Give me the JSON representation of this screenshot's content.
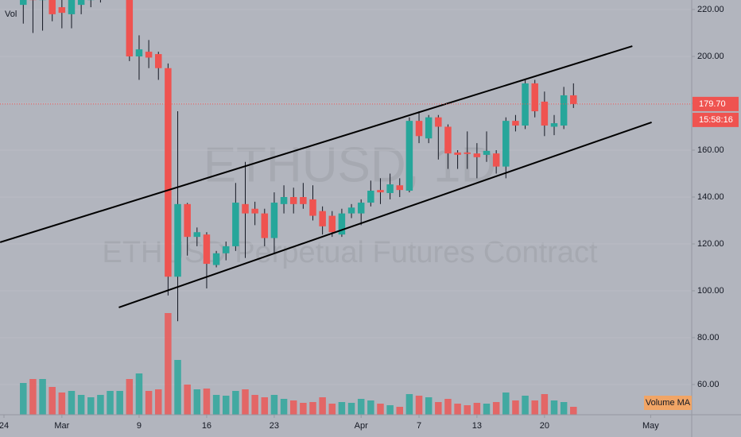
{
  "chart_data": {
    "type": "candlestick",
    "watermark": "ETHUSD, 1D",
    "watermark_subtitle": "ETHUSD Perpetual Futures Contract",
    "volume_label": "Vol",
    "volume_ma_label": "Volume MA",
    "countdown": "15:58:16",
    "last_price": {
      "value": 179.7,
      "label": "179.70"
    },
    "up_color": "#26a69a",
    "down_color": "#ef5350",
    "x": [
      2,
      3,
      4,
      5,
      6,
      7,
      8,
      9,
      10,
      11,
      12,
      13,
      14,
      15,
      16,
      17,
      18,
      19,
      20,
      21,
      22,
      23,
      24,
      25,
      26,
      27,
      28,
      29,
      30,
      31,
      32,
      33,
      34,
      35,
      36,
      37,
      38,
      39,
      40,
      41,
      42,
      43,
      44,
      45,
      46,
      47,
      48,
      49,
      50,
      51,
      52,
      53,
      54,
      55,
      56,
      57,
      58,
      59
    ],
    "open": [
      222,
      228,
      224,
      226,
      221,
      218,
      222,
      224,
      226,
      232,
      236,
      240,
      200,
      202,
      201,
      195,
      106,
      137,
      123,
      124,
      111,
      116,
      119,
      137,
      135,
      133,
      122.5,
      137,
      140,
      140,
      139,
      134,
      132,
      124,
      133,
      133,
      137.6,
      143,
      141.7,
      145,
      142.7,
      172.5,
      165,
      174,
      170,
      159,
      159,
      158.6,
      158,
      158.6,
      153,
      172.5,
      170.5,
      188.5,
      180.7,
      170,
      170.5,
      183.4
    ],
    "high": [
      230,
      230,
      229,
      228,
      225,
      228,
      228,
      229,
      232,
      238,
      242,
      242,
      209,
      207,
      202,
      197,
      176.6,
      137.5,
      127,
      125,
      117,
      121,
      146,
      155,
      138,
      135,
      142,
      145,
      144,
      146,
      145,
      136,
      134,
      135,
      137,
      139,
      147,
      148,
      150,
      148,
      174,
      176.6,
      175,
      175,
      171,
      160,
      168,
      163,
      168,
      160,
      174,
      175,
      190,
      190,
      185,
      175,
      187,
      188.5
    ],
    "low": [
      214,
      210,
      211,
      215,
      212,
      212,
      218,
      221,
      223,
      226,
      230,
      198,
      190,
      195,
      190,
      98,
      87,
      115,
      119,
      101,
      110,
      113,
      117,
      114,
      128,
      119,
      116,
      133,
      133,
      135,
      130,
      124,
      123,
      123,
      131,
      128,
      136,
      137,
      139,
      140,
      142,
      163,
      163,
      156,
      152,
      152,
      152,
      148,
      155,
      150,
      148,
      168,
      169,
      174,
      166,
      166.4,
      169,
      178
    ],
    "close": [
      226,
      224,
      226,
      218,
      218.6,
      226,
      226,
      226,
      230,
      235,
      240,
      200,
      203,
      199.5,
      195,
      106,
      137,
      123,
      125,
      111.5,
      116,
      119,
      137.6,
      133,
      133,
      122.5,
      137.6,
      140,
      137,
      137,
      132,
      127.5,
      125,
      133,
      135.5,
      137.6,
      142.7,
      142,
      145.4,
      143,
      172.5,
      166,
      174,
      170,
      158.6,
      158,
      158.4,
      157,
      159.7,
      153,
      172.5,
      170.5,
      188.5,
      176.6,
      170.5,
      171.5,
      183.4,
      179.7
    ],
    "volume": [
      40,
      45,
      45,
      35,
      28,
      30,
      25,
      22,
      25,
      30,
      30,
      45,
      52,
      30,
      32,
      128,
      69,
      38,
      32,
      33,
      25,
      24,
      30,
      32,
      25,
      22,
      25,
      20,
      18,
      15,
      16,
      22,
      14,
      16,
      15,
      20,
      18,
      14,
      12,
      10,
      26,
      24,
      22,
      16,
      20,
      14,
      12,
      15,
      14,
      16,
      28,
      18,
      24,
      18,
      26,
      18,
      16,
      10
    ],
    "volume_lim": [
      0,
      180
    ],
    "trendlines": [
      {
        "x": [
          -0.4,
          65.1
        ],
        "y": [
          120.7,
          204.4
        ]
      },
      {
        "x": [
          11.9,
          67.1
        ],
        "y": [
          92.9,
          171.9
        ]
      }
    ],
    "xlim": [
      -0.412,
      71.25
    ],
    "xticks": [
      {
        "value": 0,
        "label": "24"
      },
      {
        "value": 6,
        "label": "Mar"
      },
      {
        "value": 14,
        "label": "9"
      },
      {
        "value": 21,
        "label": "16"
      },
      {
        "value": 28,
        "label": "23"
      },
      {
        "value": 37,
        "label": "Apr"
      },
      {
        "value": 43,
        "label": "7"
      },
      {
        "value": 49,
        "label": "13"
      },
      {
        "value": 56,
        "label": "20"
      },
      {
        "value": 67,
        "label": "May"
      }
    ],
    "ylim": [
      47.1,
      224.07
    ],
    "yticks": [
      {
        "value": 60,
        "label": "60.00"
      },
      {
        "value": 80,
        "label": "80.00"
      },
      {
        "value": 100,
        "label": "100.00"
      },
      {
        "value": 120,
        "label": "120.00"
      },
      {
        "value": 140,
        "label": "140.00"
      },
      {
        "value": 160,
        "label": "160.00"
      },
      {
        "value": 180,
        "label": "180.00"
      },
      {
        "value": 200,
        "label": "200.00"
      },
      {
        "value": 220,
        "label": "220.00"
      }
    ]
  }
}
